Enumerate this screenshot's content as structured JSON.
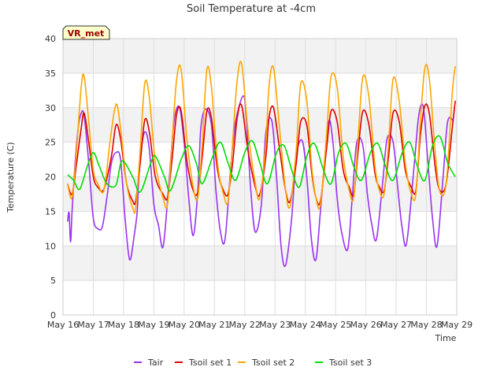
{
  "chart_data": {
    "type": "line",
    "title": "Soil Temperature at -4cm",
    "xlabel": "Time",
    "ylabel": "Temperature (C)",
    "badge": "VR_met",
    "xlim": [
      16,
      29
    ],
    "ylim": [
      0,
      40
    ],
    "xticks": [
      16,
      17,
      18,
      19,
      20,
      21,
      22,
      23,
      24,
      25,
      26,
      27,
      28,
      29
    ],
    "xtick_labels": [
      "May 16",
      "May 17",
      "May 18",
      "May 19",
      "May 20",
      "May 21",
      "May 22",
      "May 23",
      "May 24",
      "May 25",
      "May 26",
      "May 27",
      "May 28",
      "May 29"
    ],
    "yticks": [
      0,
      5,
      10,
      15,
      20,
      25,
      30,
      35,
      40
    ],
    "ytick_labels": [
      "0",
      "5",
      "10",
      "15",
      "20",
      "25",
      "30",
      "35",
      "40"
    ],
    "grid": true,
    "legend_position": "bottom",
    "series": [
      {
        "name": "Tair",
        "color": "#9933ee",
        "x": [
          16.15,
          16.2,
          16.25,
          16.3,
          16.4,
          16.5,
          16.6,
          16.7,
          16.85,
          17.0,
          17.15,
          17.3,
          17.45,
          17.6,
          17.75,
          17.9,
          18.05,
          18.2,
          18.35,
          18.45,
          18.5,
          18.55,
          18.7,
          18.85,
          19.0,
          19.15,
          19.3,
          19.45,
          19.6,
          19.7,
          19.85,
          20.0,
          20.15,
          20.3,
          20.45,
          20.55,
          20.7,
          20.9,
          21.05,
          21.2,
          21.35,
          21.55,
          21.7,
          21.95,
          22.05,
          22.2,
          22.35,
          22.55,
          22.7,
          22.9,
          23.05,
          23.2,
          23.35,
          23.55,
          23.7,
          23.9,
          24.05,
          24.2,
          24.35,
          24.5,
          24.75,
          24.9,
          25.05,
          25.2,
          25.4,
          25.55,
          25.7,
          25.9,
          26.05,
          26.2,
          26.35,
          26.55,
          26.7,
          26.9,
          27.05,
          27.2,
          27.35,
          27.6,
          27.75,
          27.9,
          28.05,
          28.2,
          28.35,
          28.55,
          28.7,
          28.9
        ],
        "values": [
          13.5,
          14.8,
          10.6,
          15.0,
          22.0,
          27.0,
          29.2,
          28.8,
          22.0,
          14.0,
          12.5,
          12.8,
          17.0,
          22.0,
          23.5,
          22.5,
          14.0,
          8.0,
          11.5,
          15.0,
          20.0,
          23.0,
          26.5,
          24.0,
          16.0,
          13.0,
          9.8,
          16.5,
          25.0,
          29.0,
          30.0,
          25.0,
          17.0,
          11.5,
          18.0,
          27.0,
          29.8,
          27.5,
          18.0,
          12.0,
          11.0,
          22.0,
          28.0,
          31.7,
          28.5,
          18.0,
          12.0,
          16.0,
          26.5,
          28.0,
          20.0,
          10.0,
          7.2,
          14.0,
          23.0,
          25.2,
          20.0,
          11.0,
          8.0,
          15.0,
          27.5,
          25.5,
          17.0,
          12.0,
          9.5,
          17.0,
          25.0,
          24.5,
          17.5,
          13.0,
          11.0,
          19.0,
          25.5,
          25.0,
          18.5,
          12.5,
          10.5,
          22.0,
          29.0,
          30.0,
          22.0,
          14.0,
          10.0,
          20.0,
          28.0,
          28.0
        ]
      },
      {
        "name": "Tsoil set 1",
        "color": "#dd0000",
        "x": [
          16.15,
          16.3,
          16.45,
          16.6,
          16.7,
          16.85,
          17.0,
          17.15,
          17.35,
          17.6,
          17.75,
          17.9,
          18.1,
          18.3,
          18.4,
          18.55,
          18.7,
          18.85,
          19.05,
          19.3,
          19.45,
          19.6,
          19.75,
          19.9,
          20.1,
          20.3,
          20.45,
          20.6,
          20.75,
          20.9,
          21.1,
          21.3,
          21.45,
          21.6,
          21.75,
          21.9,
          22.1,
          22.35,
          22.5,
          22.7,
          22.8,
          22.95,
          23.15,
          23.35,
          23.5,
          23.7,
          23.85,
          24.05,
          24.2,
          24.35,
          24.5,
          24.7,
          24.85,
          25.05,
          25.25,
          25.45,
          25.6,
          25.75,
          25.9,
          26.1,
          26.3,
          26.45,
          26.6,
          26.75,
          26.9,
          27.1,
          27.3,
          27.5,
          27.65,
          27.8,
          27.95,
          28.1,
          28.3,
          28.45,
          28.65,
          28.85,
          28.95
        ],
        "values": [
          19.0,
          17.5,
          22.0,
          27.0,
          29.2,
          25.0,
          20.0,
          18.5,
          18.2,
          23.0,
          27.5,
          25.5,
          19.0,
          16.5,
          16.5,
          22.0,
          28.2,
          26.5,
          20.0,
          17.5,
          17.0,
          22.5,
          29.0,
          29.5,
          22.0,
          18.0,
          17.8,
          23.0,
          29.5,
          28.5,
          21.0,
          18.0,
          17.5,
          22.0,
          28.5,
          30.3,
          24.0,
          18.5,
          17.5,
          23.0,
          28.5,
          30.0,
          24.0,
          18.0,
          16.5,
          22.0,
          28.0,
          27.5,
          21.0,
          17.0,
          16.5,
          24.0,
          29.5,
          28.0,
          21.0,
          18.5,
          17.5,
          24.0,
          29.5,
          27.5,
          20.5,
          18.5,
          18.0,
          23.0,
          29.3,
          28.0,
          21.0,
          18.5,
          18.0,
          26.0,
          30.3,
          29.0,
          21.0,
          18.0,
          19.0,
          27.0,
          31.0
        ]
      },
      {
        "name": "Tsoil set 2",
        "color": "#ffa500",
        "x": [
          16.15,
          16.3,
          16.45,
          16.6,
          16.7,
          16.85,
          17.0,
          17.15,
          17.35,
          17.55,
          17.75,
          17.9,
          18.1,
          18.3,
          18.4,
          18.55,
          18.7,
          18.85,
          19.05,
          19.3,
          19.45,
          19.6,
          19.75,
          19.9,
          20.1,
          20.3,
          20.45,
          20.6,
          20.75,
          20.9,
          21.1,
          21.3,
          21.45,
          21.6,
          21.75,
          21.9,
          22.1,
          22.35,
          22.5,
          22.7,
          22.8,
          22.95,
          23.15,
          23.35,
          23.5,
          23.7,
          23.85,
          24.05,
          24.2,
          24.35,
          24.5,
          24.7,
          24.85,
          25.05,
          25.25,
          25.45,
          25.6,
          25.75,
          25.9,
          26.1,
          26.3,
          26.45,
          26.6,
          26.75,
          26.9,
          27.1,
          27.3,
          27.5,
          27.65,
          27.8,
          27.95,
          28.1,
          28.3,
          28.45,
          28.65,
          28.85,
          28.95
        ],
        "values": [
          19.0,
          17.0,
          24.0,
          33.0,
          34.5,
          28.0,
          21.0,
          19.0,
          18.0,
          25.0,
          30.5,
          27.0,
          19.0,
          15.5,
          15.5,
          24.0,
          33.5,
          31.5,
          22.0,
          17.0,
          16.0,
          25.0,
          34.0,
          35.5,
          25.0,
          18.5,
          17.0,
          25.0,
          35.5,
          33.0,
          22.0,
          17.5,
          16.5,
          25.0,
          34.0,
          36.3,
          27.0,
          19.0,
          17.0,
          25.0,
          33.0,
          35.8,
          27.0,
          18.0,
          15.8,
          24.0,
          33.5,
          31.0,
          22.0,
          17.0,
          16.0,
          26.0,
          34.5,
          33.0,
          23.0,
          18.0,
          17.0,
          26.0,
          34.5,
          31.5,
          21.5,
          18.0,
          17.5,
          25.0,
          34.2,
          31.0,
          22.0,
          17.5,
          17.5,
          28.0,
          35.8,
          34.0,
          23.0,
          17.8,
          19.0,
          32.0,
          36.0
        ]
      },
      {
        "name": "Tsoil set 3",
        "color": "#00dd00",
        "x": [
          16.15,
          16.35,
          16.55,
          16.8,
          17.0,
          17.2,
          17.45,
          17.75,
          17.95,
          18.3,
          18.55,
          18.9,
          19.05,
          19.35,
          19.55,
          19.9,
          20.15,
          20.4,
          20.6,
          20.95,
          21.2,
          21.45,
          21.7,
          22.0,
          22.25,
          22.5,
          22.75,
          23.05,
          23.3,
          23.55,
          23.8,
          24.05,
          24.3,
          24.6,
          24.85,
          25.1,
          25.35,
          25.6,
          25.85,
          26.15,
          26.4,
          26.65,
          26.9,
          27.2,
          27.45,
          27.7,
          27.95,
          28.2,
          28.45,
          28.7,
          28.95
        ],
        "values": [
          20.3,
          19.5,
          18.2,
          21.5,
          23.5,
          21.5,
          19.0,
          18.8,
          22.3,
          20.0,
          17.8,
          22.0,
          23.0,
          20.0,
          18.0,
          22.5,
          24.5,
          22.0,
          19.0,
          23.0,
          25.0,
          22.0,
          19.5,
          23.5,
          25.2,
          22.0,
          19.0,
          23.5,
          24.5,
          21.0,
          18.5,
          23.0,
          24.8,
          21.0,
          19.0,
          23.5,
          24.8,
          21.5,
          19.5,
          23.5,
          24.8,
          21.5,
          19.5,
          23.5,
          25.0,
          21.5,
          19.5,
          24.5,
          25.8,
          22.0,
          20.0
        ]
      }
    ]
  }
}
